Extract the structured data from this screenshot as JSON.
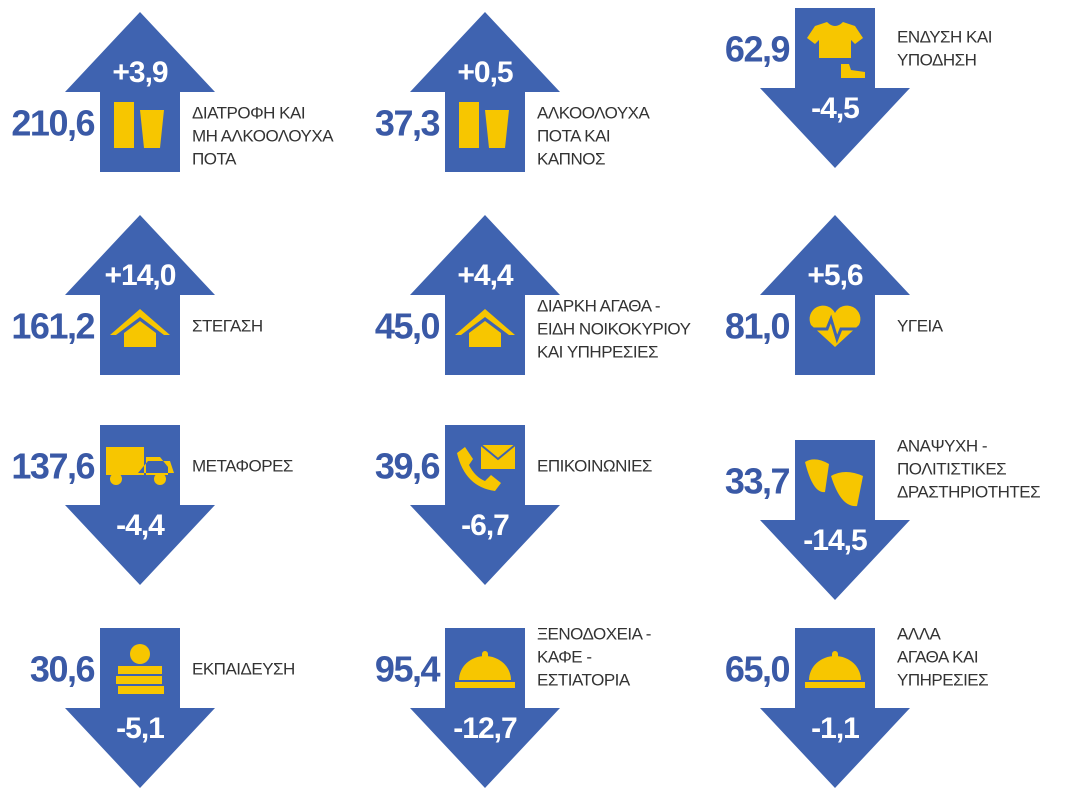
{
  "items": [
    {
      "value": "210,6",
      "change": "+3,9",
      "label": [
        "ΔΙΑΤΡΟΦΗ ΚΑΙ",
        "ΜΗ ΑΛΚΟΟΛΟΥΧΑ",
        "ΠΟΤΑ"
      ]
    },
    {
      "value": "37,3",
      "change": "+0,5",
      "label": [
        "ΑΛΚΟΟΛΟΥΧΑ",
        "ΠΟΤΑ ΚΑΙ",
        "ΚΑΠΝΟΣ"
      ]
    },
    {
      "value": "62,9",
      "change": "-4,5",
      "label": [
        "ΕΝΔΥΣΗ ΚΑΙ",
        "ΥΠΟΔΗΣΗ"
      ]
    },
    {
      "value": "161,2",
      "change": "+14,0",
      "label": [
        "ΣΤΕΓΑΣΗ"
      ]
    },
    {
      "value": "45,0",
      "change": "+4,4",
      "label": [
        "ΔΙΑΡΚΗ ΑΓΑΘΑ -",
        "ΕΙΔΗ ΝΟΙΚΟΚΥΡΙΟΥ",
        "ΚΑΙ ΥΠΗΡΕΣΙΕΣ"
      ]
    },
    {
      "value": "81,0",
      "change": "+5,6",
      "label": [
        "ΥΓΕΙΑ"
      ]
    },
    {
      "value": "137,6",
      "change": "-4,4",
      "label": [
        "ΜΕΤΑΦΟΡΕΣ"
      ]
    },
    {
      "value": "39,6",
      "change": "-6,7",
      "label": [
        "ΕΠΙΚΟΙΝΩΝΙΕΣ"
      ]
    },
    {
      "value": "33,7",
      "change": "-14,5",
      "label": [
        "ΑΝΑΨΥΧΗ -",
        "ΠΟΛΙΤΙΣΤΙΚΕΣ",
        "ΔΡΑΣΤΗΡΙΟΤΗΤΕΣ"
      ]
    },
    {
      "value": "30,6",
      "change": "-5,1",
      "label": [
        "ΕΚΠΑΙΔΕΥΣΗ"
      ]
    },
    {
      "value": "95,4",
      "change": "-12,7",
      "label": [
        "ΞΕΝΟΔΟΧΕΙΑ -",
        "ΚΑΦΕ -",
        "ΕΣΤΙΑΤΟΡΙΑ"
      ]
    },
    {
      "value": "65,0",
      "change": "-1,1",
      "label": [
        "ΑΛΛΑ",
        "ΑΓΑΘΑ ΚΑΙ",
        "ΥΠΗΡΕΣΙΕΣ"
      ]
    }
  ]
}
